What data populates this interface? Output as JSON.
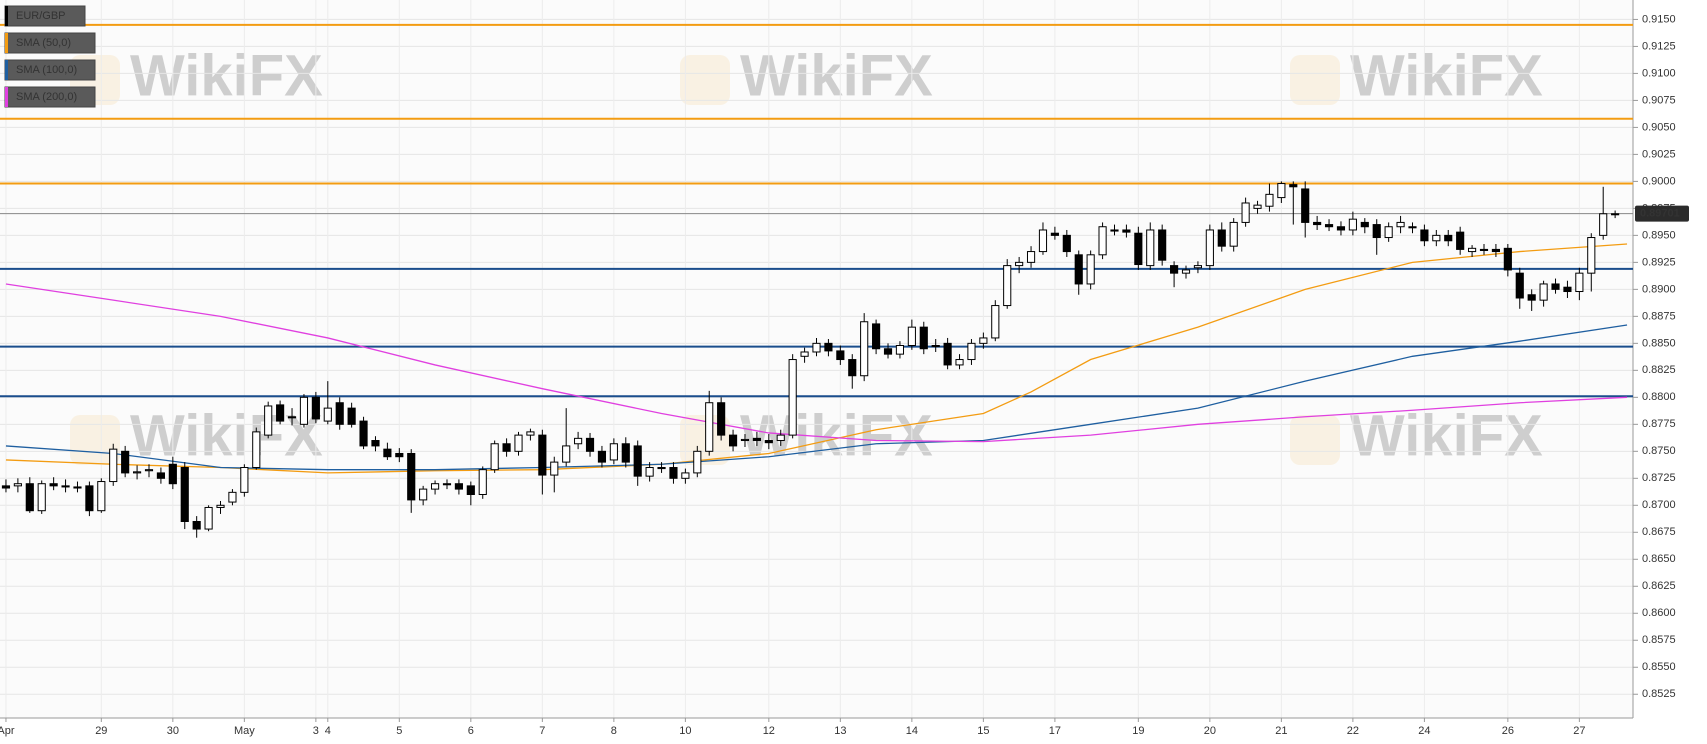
{
  "chart_data": {
    "type": "candlestick",
    "watermark": "WikiFX",
    "series": [
      {
        "name": "EUR/GBP",
        "color": "#000000",
        "values": [
          [
            0.8718,
            0.8724,
            0.8712,
            0.8716
          ],
          [
            0.8718,
            0.8725,
            0.8712,
            0.872
          ],
          [
            0.872,
            0.8726,
            0.8693,
            0.8695
          ],
          [
            0.8695,
            0.8723,
            0.8692,
            0.872
          ],
          [
            0.872,
            0.8726,
            0.8714,
            0.8718
          ],
          [
            0.8718,
            0.8724,
            0.8712,
            0.8717
          ],
          [
            0.8717,
            0.8722,
            0.8712,
            0.8716
          ],
          [
            0.8718,
            0.8722,
            0.869,
            0.8695
          ],
          [
            0.8695,
            0.8725,
            0.8693,
            0.8722
          ],
          [
            0.8722,
            0.8757,
            0.8718,
            0.8752
          ],
          [
            0.875,
            0.8755,
            0.8726,
            0.873
          ],
          [
            0.873,
            0.8737,
            0.8724,
            0.8731
          ],
          [
            0.8732,
            0.8738,
            0.8726,
            0.8733
          ],
          [
            0.873,
            0.8735,
            0.872,
            0.8725
          ],
          [
            0.8738,
            0.8745,
            0.8715,
            0.872
          ],
          [
            0.8735,
            0.874,
            0.8678,
            0.8685
          ],
          [
            0.8685,
            0.869,
            0.867,
            0.8678
          ],
          [
            0.8678,
            0.87,
            0.8676,
            0.8698
          ],
          [
            0.8698,
            0.8704,
            0.8692,
            0.87
          ],
          [
            0.8703,
            0.8715,
            0.87,
            0.8712
          ],
          [
            0.8712,
            0.8738,
            0.8708,
            0.8735
          ],
          [
            0.8735,
            0.8772,
            0.8733,
            0.8768
          ],
          [
            0.8765,
            0.8796,
            0.8762,
            0.8792
          ],
          [
            0.8793,
            0.8797,
            0.8775,
            0.8778
          ],
          [
            0.8782,
            0.879,
            0.8774,
            0.8781
          ],
          [
            0.8775,
            0.8803,
            0.8772,
            0.88
          ],
          [
            0.88,
            0.8805,
            0.8776,
            0.878
          ],
          [
            0.8778,
            0.8815,
            0.8775,
            0.879
          ],
          [
            0.8795,
            0.88,
            0.877,
            0.8775
          ],
          [
            0.879,
            0.8795,
            0.8772,
            0.8775
          ],
          [
            0.8778,
            0.8782,
            0.8752,
            0.8755
          ],
          [
            0.876,
            0.8764,
            0.875,
            0.8755
          ],
          [
            0.8752,
            0.8758,
            0.8742,
            0.8745
          ],
          [
            0.8748,
            0.8753,
            0.874,
            0.8745
          ],
          [
            0.8748,
            0.8752,
            0.8693,
            0.8705
          ],
          [
            0.8705,
            0.8718,
            0.87,
            0.8715
          ],
          [
            0.8715,
            0.8723,
            0.871,
            0.872
          ],
          [
            0.872,
            0.8724,
            0.8715,
            0.8719
          ],
          [
            0.872,
            0.8724,
            0.871,
            0.8715
          ],
          [
            0.8718,
            0.8722,
            0.87,
            0.871
          ],
          [
            0.871,
            0.8736,
            0.8706,
            0.8733
          ],
          [
            0.8733,
            0.876,
            0.873,
            0.8757
          ],
          [
            0.8757,
            0.8762,
            0.8745,
            0.875
          ],
          [
            0.875,
            0.8768,
            0.8746,
            0.8765
          ],
          [
            0.8765,
            0.8771,
            0.876,
            0.8768
          ],
          [
            0.8765,
            0.877,
            0.871,
            0.8728
          ],
          [
            0.8728,
            0.8745,
            0.8712,
            0.874
          ],
          [
            0.874,
            0.879,
            0.8736,
            0.8755
          ],
          [
            0.8757,
            0.8768,
            0.8752,
            0.8762
          ],
          [
            0.8762,
            0.8767,
            0.8745,
            0.875
          ],
          [
            0.875,
            0.8755,
            0.8735,
            0.874
          ],
          [
            0.8742,
            0.8762,
            0.8738,
            0.8757
          ],
          [
            0.8757,
            0.8763,
            0.8735,
            0.874
          ],
          [
            0.8755,
            0.876,
            0.8718,
            0.8727
          ],
          [
            0.8727,
            0.874,
            0.8722,
            0.8735
          ],
          [
            0.8735,
            0.874,
            0.873,
            0.8734
          ],
          [
            0.8735,
            0.874,
            0.872,
            0.8725
          ],
          [
            0.8725,
            0.8734,
            0.872,
            0.873
          ],
          [
            0.873,
            0.8755,
            0.8726,
            0.875
          ],
          [
            0.875,
            0.8806,
            0.8746,
            0.8795
          ],
          [
            0.8795,
            0.88,
            0.876,
            0.8765
          ],
          [
            0.8765,
            0.877,
            0.875,
            0.8755
          ],
          [
            0.876,
            0.8766,
            0.8754,
            0.8761
          ],
          [
            0.8762,
            0.8768,
            0.8755,
            0.876
          ],
          [
            0.876,
            0.8766,
            0.8752,
            0.8758
          ],
          [
            0.876,
            0.877,
            0.8755,
            0.8765
          ],
          [
            0.8765,
            0.884,
            0.8762,
            0.8835
          ],
          [
            0.8838,
            0.8846,
            0.8832,
            0.8842
          ],
          [
            0.8842,
            0.8855,
            0.8838,
            0.885
          ],
          [
            0.885,
            0.8854,
            0.8838,
            0.8843
          ],
          [
            0.8843,
            0.8848,
            0.883,
            0.8835
          ],
          [
            0.8835,
            0.884,
            0.8808,
            0.882
          ],
          [
            0.882,
            0.8878,
            0.8815,
            0.887
          ],
          [
            0.8868,
            0.8872,
            0.884,
            0.8845
          ],
          [
            0.8845,
            0.885,
            0.8836,
            0.884
          ],
          [
            0.884,
            0.8852,
            0.8836,
            0.8848
          ],
          [
            0.8848,
            0.8872,
            0.8844,
            0.8865
          ],
          [
            0.8865,
            0.887,
            0.884,
            0.8845
          ],
          [
            0.8848,
            0.8854,
            0.8842,
            0.8847
          ],
          [
            0.885,
            0.8855,
            0.8826,
            0.883
          ],
          [
            0.883,
            0.884,
            0.8826,
            0.8835
          ],
          [
            0.8835,
            0.8854,
            0.883,
            0.885
          ],
          [
            0.885,
            0.886,
            0.8845,
            0.8855
          ],
          [
            0.8855,
            0.889,
            0.8852,
            0.8885
          ],
          [
            0.8885,
            0.8928,
            0.8882,
            0.8922
          ],
          [
            0.8922,
            0.893,
            0.8915,
            0.8925
          ],
          [
            0.8925,
            0.894,
            0.892,
            0.8935
          ],
          [
            0.8935,
            0.8962,
            0.8932,
            0.8955
          ],
          [
            0.8952,
            0.8958,
            0.8946,
            0.895
          ],
          [
            0.895,
            0.8955,
            0.893,
            0.8935
          ],
          [
            0.8932,
            0.8936,
            0.8895,
            0.8905
          ],
          [
            0.8905,
            0.8936,
            0.89,
            0.8932
          ],
          [
            0.8932,
            0.8962,
            0.8928,
            0.8958
          ],
          [
            0.8955,
            0.896,
            0.895,
            0.8954
          ],
          [
            0.8955,
            0.896,
            0.8948,
            0.8953
          ],
          [
            0.8952,
            0.8958,
            0.8918,
            0.8923
          ],
          [
            0.8922,
            0.8962,
            0.8918,
            0.8955
          ],
          [
            0.8955,
            0.896,
            0.8922,
            0.8927
          ],
          [
            0.8922,
            0.8926,
            0.8902,
            0.8915
          ],
          [
            0.8915,
            0.8922,
            0.891,
            0.8918
          ],
          [
            0.892,
            0.8926,
            0.8915,
            0.8922
          ],
          [
            0.8922,
            0.896,
            0.8918,
            0.8955
          ],
          [
            0.8955,
            0.8962,
            0.8935,
            0.894
          ],
          [
            0.894,
            0.8966,
            0.8935,
            0.8962
          ],
          [
            0.8962,
            0.8985,
            0.8958,
            0.898
          ],
          [
            0.8975,
            0.8982,
            0.897,
            0.8978
          ],
          [
            0.8977,
            0.8998,
            0.8972,
            0.8988
          ],
          [
            0.8985,
            0.9,
            0.898,
            0.8998
          ],
          [
            0.8997,
            0.9,
            0.896,
            0.8995
          ],
          [
            0.8993,
            0.9,
            0.8948,
            0.8962
          ],
          [
            0.8962,
            0.8968,
            0.8955,
            0.896
          ],
          [
            0.896,
            0.8965,
            0.8954,
            0.8958
          ],
          [
            0.8958,
            0.8963,
            0.895,
            0.8955
          ],
          [
            0.8955,
            0.8972,
            0.895,
            0.8965
          ],
          [
            0.8962,
            0.8966,
            0.8952,
            0.8958
          ],
          [
            0.896,
            0.8965,
            0.8932,
            0.8948
          ],
          [
            0.8948,
            0.8962,
            0.8944,
            0.8958
          ],
          [
            0.8958,
            0.8968,
            0.8952,
            0.8962
          ],
          [
            0.8958,
            0.8962,
            0.8952,
            0.8957
          ],
          [
            0.8955,
            0.896,
            0.894,
            0.8945
          ],
          [
            0.8945,
            0.8955,
            0.894,
            0.895
          ],
          [
            0.895,
            0.8955,
            0.894,
            0.8945
          ],
          [
            0.8953,
            0.8958,
            0.8932,
            0.8937
          ],
          [
            0.8935,
            0.8941,
            0.893,
            0.8938
          ],
          [
            0.8937,
            0.8942,
            0.8932,
            0.8936
          ],
          [
            0.8937,
            0.8942,
            0.893,
            0.8935
          ],
          [
            0.8938,
            0.8942,
            0.8912,
            0.8918
          ],
          [
            0.8915,
            0.892,
            0.8882,
            0.8892
          ],
          [
            0.8895,
            0.89,
            0.888,
            0.889
          ],
          [
            0.889,
            0.8908,
            0.8884,
            0.8905
          ],
          [
            0.8905,
            0.891,
            0.8896,
            0.89
          ],
          [
            0.8902,
            0.8908,
            0.8892,
            0.8898
          ],
          [
            0.8898,
            0.892,
            0.889,
            0.8915
          ],
          [
            0.8915,
            0.8952,
            0.8898,
            0.8948
          ],
          [
            0.895,
            0.8995,
            0.8946,
            0.897
          ],
          [
            0.897,
            0.8973,
            0.8966,
            0.897
          ]
        ]
      }
    ],
    "indicators": [
      {
        "name": "SMA (50,0)",
        "color": "#f39c12",
        "x": [
          0,
          9,
          18,
          27,
          36,
          45,
          55,
          64,
          73,
          82,
          86,
          91,
          100,
          109,
          118,
          127,
          136
        ],
        "values": [
          0.8742,
          0.8738,
          0.8735,
          0.873,
          0.8732,
          0.8733,
          0.8738,
          0.8748,
          0.877,
          0.8785,
          0.8805,
          0.8835,
          0.8865,
          0.89,
          0.8925,
          0.8935,
          0.8942
        ]
      },
      {
        "name": "SMA (100,0)",
        "color": "#1f5fa0",
        "x": [
          0,
          9,
          18,
          27,
          36,
          45,
          55,
          64,
          73,
          82,
          91,
          100,
          109,
          118,
          127,
          136
        ],
        "values": [
          0.8755,
          0.8748,
          0.8735,
          0.8733,
          0.8733,
          0.8735,
          0.8738,
          0.8745,
          0.8757,
          0.876,
          0.8775,
          0.879,
          0.8815,
          0.8838,
          0.8852,
          0.8867
        ]
      },
      {
        "name": "SMA (200,0)",
        "color": "#e040e0",
        "x": [
          0,
          9,
          18,
          27,
          36,
          45,
          55,
          64,
          73,
          82,
          91,
          100,
          109,
          118,
          127,
          136
        ],
        "values": [
          0.8905,
          0.889,
          0.8875,
          0.8855,
          0.883,
          0.8808,
          0.8785,
          0.8767,
          0.876,
          0.8759,
          0.8765,
          0.8775,
          0.8782,
          0.8788,
          0.8795,
          0.88
        ]
      }
    ],
    "levels": [
      {
        "value": 0.9145,
        "color": "#f39c12"
      },
      {
        "value": 0.9058,
        "color": "#f39c12"
      },
      {
        "value": 0.8998,
        "color": "#f39c12"
      },
      {
        "value": 0.8919,
        "color": "#1a4d8c"
      },
      {
        "value": 0.8847,
        "color": "#1a4d8c"
      },
      {
        "value": 0.8801,
        "color": "#1a4d8c"
      }
    ],
    "last_price": 0.89701,
    "xlim": [
      -0.5,
      136.5
    ],
    "xticks": [
      {
        "value": 0,
        "label": "Apr"
      },
      {
        "value": 8,
        "label": "29"
      },
      {
        "value": 14,
        "label": "30"
      },
      {
        "value": 20,
        "label": "May"
      },
      {
        "value": 26,
        "label": "3"
      },
      {
        "value": 27,
        "label": "4"
      },
      {
        "value": 33,
        "label": "5"
      },
      {
        "value": 39,
        "label": "6"
      },
      {
        "value": 45,
        "label": "7"
      },
      {
        "value": 51,
        "label": "8"
      },
      {
        "value": 57,
        "label": "10"
      },
      {
        "value": 64,
        "label": "12"
      },
      {
        "value": 70,
        "label": "13"
      },
      {
        "value": 76,
        "label": "14"
      },
      {
        "value": 82,
        "label": "15"
      },
      {
        "value": 88,
        "label": "17"
      },
      {
        "value": 95,
        "label": "19"
      },
      {
        "value": 101,
        "label": "20"
      },
      {
        "value": 107,
        "label": "21"
      },
      {
        "value": 113,
        "label": "22"
      },
      {
        "value": 119,
        "label": "24"
      },
      {
        "value": 126,
        "label": "26"
      },
      {
        "value": 132,
        "label": "27"
      }
    ],
    "ylim": [
      0.8503,
      0.9168
    ],
    "yticks": [
      {
        "value": 0.8525,
        "label": "0.8525"
      },
      {
        "value": 0.855,
        "label": "0.8550"
      },
      {
        "value": 0.8575,
        "label": "0.8575"
      },
      {
        "value": 0.86,
        "label": "0.8600"
      },
      {
        "value": 0.8625,
        "label": "0.8625"
      },
      {
        "value": 0.865,
        "label": "0.8650"
      },
      {
        "value": 0.8675,
        "label": "0.8675"
      },
      {
        "value": 0.87,
        "label": "0.8700"
      },
      {
        "value": 0.8725,
        "label": "0.8725"
      },
      {
        "value": 0.875,
        "label": "0.8750"
      },
      {
        "value": 0.8775,
        "label": "0.8775"
      },
      {
        "value": 0.88,
        "label": "0.8800"
      },
      {
        "value": 0.8825,
        "label": "0.8825"
      },
      {
        "value": 0.885,
        "label": "0.8850"
      },
      {
        "value": 0.8875,
        "label": "0.8875"
      },
      {
        "value": 0.89,
        "label": "0.8900"
      },
      {
        "value": 0.8925,
        "label": "0.8925"
      },
      {
        "value": 0.895,
        "label": "0.8950"
      },
      {
        "value": 0.8975,
        "label": "0.8975"
      },
      {
        "value": 0.9,
        "label": "0.9000"
      },
      {
        "value": 0.9025,
        "label": "0.9025"
      },
      {
        "value": 0.905,
        "label": "0.9050"
      },
      {
        "value": 0.9075,
        "label": "0.9075"
      },
      {
        "value": 0.91,
        "label": "0.9100"
      },
      {
        "value": 0.9125,
        "label": "0.9125"
      },
      {
        "value": 0.915,
        "label": "0.9150"
      }
    ],
    "grid": true
  }
}
